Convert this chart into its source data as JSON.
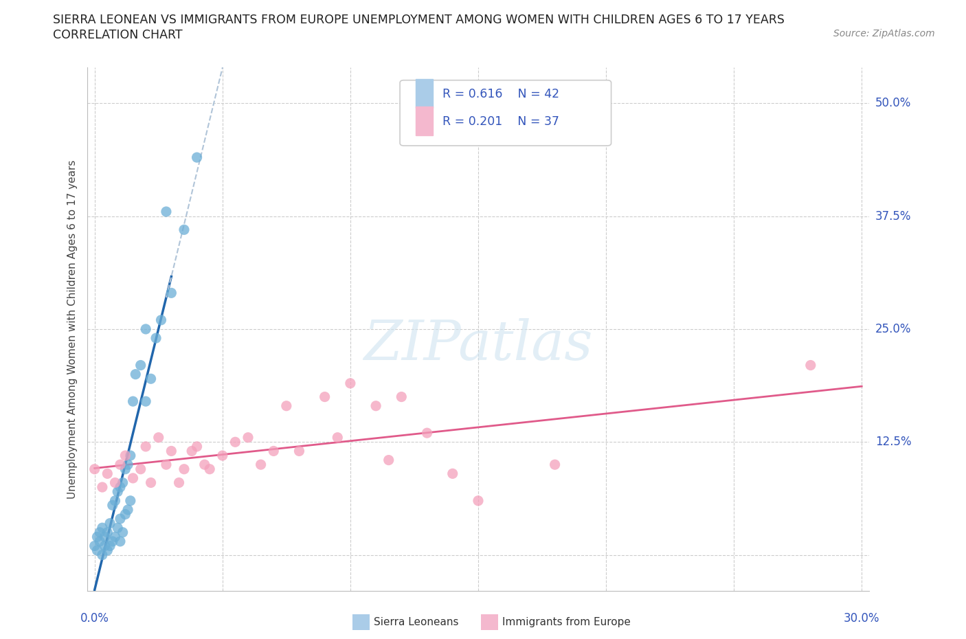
{
  "title_line1": "SIERRA LEONEAN VS IMMIGRANTS FROM EUROPE UNEMPLOYMENT AMONG WOMEN WITH CHILDREN AGES 6 TO 17 YEARS",
  "title_line2": "CORRELATION CHART",
  "source_text": "Source: ZipAtlas.com",
  "ylabel": "Unemployment Among Women with Children Ages 6 to 17 years",
  "R1": "0.616",
  "N1": "42",
  "R2": "0.201",
  "N2": "37",
  "color_sl": "#6baed6",
  "color_eu": "#f4a0bb",
  "color_trend_sl": "#2166ac",
  "color_trend_eu": "#e05a8a",
  "color_trend_ext": "#b0c4d8",
  "watermark_color": "#d0e4f0",
  "xlim": [
    0.0,
    0.3
  ],
  "ylim": [
    -0.04,
    0.54
  ],
  "ytick_vals": [
    0.0,
    0.125,
    0.25,
    0.375,
    0.5
  ],
  "ytick_labels": [
    "",
    "12.5%",
    "25.0%",
    "37.5%",
    "50.0%"
  ],
  "xtick_vals": [
    0.0,
    0.05,
    0.1,
    0.15,
    0.2,
    0.25,
    0.3
  ],
  "sl_x": [
    0.0,
    0.001,
    0.001,
    0.002,
    0.002,
    0.003,
    0.003,
    0.004,
    0.004,
    0.005,
    0.005,
    0.006,
    0.006,
    0.007,
    0.007,
    0.008,
    0.008,
    0.009,
    0.009,
    0.01,
    0.01,
    0.01,
    0.011,
    0.011,
    0.012,
    0.012,
    0.013,
    0.013,
    0.014,
    0.014,
    0.015,
    0.016,
    0.018,
    0.02,
    0.02,
    0.022,
    0.024,
    0.026,
    0.028,
    0.03,
    0.035,
    0.04
  ],
  "sl_y": [
    0.01,
    0.02,
    0.005,
    0.015,
    0.025,
    0.0,
    0.03,
    0.01,
    0.02,
    0.005,
    0.025,
    0.01,
    0.035,
    0.015,
    0.055,
    0.02,
    0.06,
    0.03,
    0.07,
    0.015,
    0.04,
    0.075,
    0.025,
    0.08,
    0.045,
    0.095,
    0.05,
    0.1,
    0.06,
    0.11,
    0.17,
    0.2,
    0.21,
    0.25,
    0.17,
    0.195,
    0.24,
    0.26,
    0.38,
    0.29,
    0.36,
    0.44
  ],
  "eu_x": [
    0.0,
    0.003,
    0.005,
    0.008,
    0.01,
    0.012,
    0.015,
    0.018,
    0.02,
    0.022,
    0.025,
    0.028,
    0.03,
    0.033,
    0.035,
    0.038,
    0.04,
    0.043,
    0.045,
    0.05,
    0.055,
    0.06,
    0.065,
    0.07,
    0.075,
    0.08,
    0.09,
    0.095,
    0.1,
    0.11,
    0.115,
    0.12,
    0.13,
    0.14,
    0.15,
    0.18,
    0.28
  ],
  "eu_y": [
    0.095,
    0.075,
    0.09,
    0.08,
    0.1,
    0.11,
    0.085,
    0.095,
    0.12,
    0.08,
    0.13,
    0.1,
    0.115,
    0.08,
    0.095,
    0.115,
    0.12,
    0.1,
    0.095,
    0.11,
    0.125,
    0.13,
    0.1,
    0.115,
    0.165,
    0.115,
    0.175,
    0.13,
    0.19,
    0.165,
    0.105,
    0.175,
    0.135,
    0.09,
    0.06,
    0.1,
    0.21
  ]
}
